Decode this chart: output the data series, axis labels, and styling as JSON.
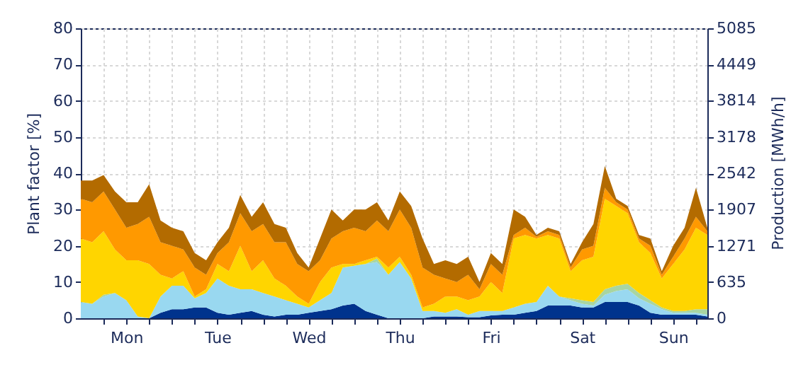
{
  "chart_data": {
    "type": "area",
    "stacked": true,
    "ylabel": "Plant factor [%]",
    "y2label": "Production [MWh/h]",
    "categories": [
      null,
      null,
      null,
      null,
      "Mon",
      null,
      null,
      null,
      null,
      null,
      null,
      null,
      "Tue",
      null,
      null,
      null,
      null,
      null,
      null,
      null,
      "Wed",
      null,
      null,
      null,
      null,
      null,
      null,
      null,
      "Thu",
      null,
      null,
      null,
      null,
      null,
      null,
      null,
      "Fri",
      null,
      null,
      null,
      null,
      null,
      null,
      null,
      "Sat",
      null,
      null,
      null,
      null,
      null,
      null,
      null,
      "Sun",
      null,
      null,
      null
    ],
    "ylim": [
      0,
      80
    ],
    "yticks": [
      0,
      10,
      20,
      30,
      40,
      50,
      60,
      70,
      80
    ],
    "y2lim": [
      0,
      5085
    ],
    "y2ticks": [
      0,
      635,
      1271,
      1907,
      2542,
      3178,
      3814,
      4449,
      5085
    ],
    "grid": true,
    "series": [
      {
        "color": "#00338d",
        "values": [
          0,
          0,
          0,
          0,
          0,
          0,
          0,
          1.5,
          2.5,
          2.5,
          3,
          3,
          1.5,
          1,
          1.5,
          2,
          1,
          0.5,
          1,
          1,
          1.5,
          2,
          2.5,
          3.5,
          4,
          2,
          1,
          0,
          0,
          0,
          0,
          0.5,
          0.5,
          0.5,
          0.3,
          0.3,
          0.8,
          1,
          1,
          1.5,
          2,
          3.5,
          3.5,
          3.5,
          3,
          3,
          4.5,
          4.5,
          4.5,
          3.5,
          1.5,
          1,
          1,
          1,
          1,
          0.5
        ]
      },
      {
        "color": "#99d8f0",
        "values": [
          4.5,
          4,
          6,
          7,
          5,
          0.5,
          0,
          4.5,
          6.5,
          6.5,
          2.5,
          4,
          9.5,
          8,
          6.5,
          6,
          6,
          5.5,
          4,
          3,
          1.5,
          3,
          4.5,
          10.5,
          10.5,
          13,
          14.5,
          12,
          15.5,
          11,
          2,
          1.5,
          1,
          2,
          0.7,
          1.7,
          1.2,
          1,
          2,
          2.5,
          2.5,
          5.5,
          2.5,
          1.5,
          1,
          0.5,
          2,
          3,
          3.5,
          2,
          2.5,
          1.5,
          0.5,
          0.5,
          0.5,
          0.5
        ]
      },
      {
        "color": "#a8d5a2",
        "values": [
          0,
          0,
          0.5,
          0,
          0,
          0,
          0,
          0,
          0,
          0,
          0,
          0,
          0,
          0,
          0,
          0,
          0,
          0,
          0,
          0,
          0,
          0,
          0,
          0,
          0,
          0,
          1,
          0,
          0,
          0,
          0,
          0,
          0,
          0,
          0,
          0,
          0,
          0,
          0,
          0,
          0,
          0,
          0,
          0.5,
          1,
          1,
          1.5,
          1.5,
          1.5,
          1.5,
          1,
          0.5,
          0.5,
          0.5,
          1,
          1.5
        ]
      },
      {
        "color": "#ffd500",
        "values": [
          17.5,
          17,
          17.5,
          12,
          11,
          15.5,
          15,
          6,
          2,
          4,
          0.5,
          1,
          4,
          4,
          12,
          5,
          9,
          5,
          4,
          2,
          1,
          5,
          7,
          1,
          0.5,
          1,
          0.5,
          2,
          1.5,
          1,
          1,
          2,
          4.5,
          3.5,
          4,
          4,
          8,
          5,
          19,
          19,
          17.5,
          14,
          16,
          7.5,
          11,
          12.5,
          25,
          22,
          19.5,
          14,
          13,
          8,
          13,
          17,
          22.5,
          20.5
        ]
      },
      {
        "color": "#ff9900",
        "values": [
          11,
          11,
          11,
          11,
          9,
          10,
          13,
          9,
          9,
          6,
          8,
          4,
          3,
          8,
          9,
          11,
          10,
          10,
          12,
          9,
          9,
          6,
          8,
          9,
          10,
          8,
          10,
          10,
          13,
          13,
          11,
          8,
          5,
          4,
          7,
          2,
          5,
          5,
          1,
          2,
          0.5,
          1,
          1,
          1,
          3,
          3,
          3,
          1,
          1,
          1,
          2,
          1,
          2,
          3,
          3,
          1
        ]
      },
      {
        "color": "#b36b00",
        "values": [
          5,
          6,
          4.5,
          5,
          7,
          6,
          9,
          6,
          5,
          5,
          4,
          4,
          3,
          4,
          5,
          4,
          6,
          5,
          4,
          3,
          1,
          6,
          8,
          3,
          5,
          6,
          5,
          3,
          5,
          6,
          8,
          3,
          5,
          5,
          5,
          2,
          3,
          3,
          7,
          3,
          0.5,
          1,
          1,
          1,
          2,
          6,
          6,
          1,
          1,
          1,
          2,
          1,
          3,
          3,
          8,
          1
        ]
      }
    ]
  }
}
